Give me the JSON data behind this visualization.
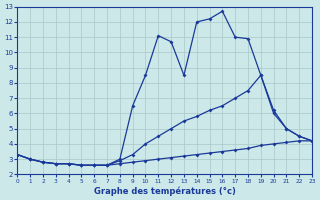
{
  "xlabel": "Graphe des températures (°c)",
  "xlim": [
    0,
    23
  ],
  "ylim": [
    2,
    13
  ],
  "yticks": [
    2,
    3,
    4,
    5,
    6,
    7,
    8,
    9,
    10,
    11,
    12,
    13
  ],
  "xticks": [
    0,
    1,
    2,
    3,
    4,
    5,
    6,
    7,
    8,
    9,
    10,
    11,
    12,
    13,
    14,
    15,
    16,
    17,
    18,
    19,
    20,
    21,
    22,
    23
  ],
  "background_color": "#cce8e8",
  "grid_color": "#aac8c8",
  "line_color": "#1a3a9a",
  "line1_y": [
    3.3,
    3.0,
    2.8,
    2.7,
    2.7,
    2.6,
    2.6,
    2.6,
    3.0,
    6.5,
    8.5,
    11.1,
    10.7,
    8.5,
    12.0,
    12.2,
    12.7,
    11.0,
    10.9,
    8.5,
    6.2,
    5.0,
    4.5,
    4.2
  ],
  "line2_y": [
    3.3,
    3.0,
    2.8,
    2.7,
    2.7,
    2.6,
    2.6,
    2.6,
    2.9,
    3.3,
    4.0,
    4.5,
    5.0,
    5.5,
    5.8,
    6.2,
    6.5,
    7.0,
    7.5,
    8.5,
    6.0,
    5.0,
    4.5,
    4.2
  ],
  "line3_y": [
    3.3,
    3.0,
    2.8,
    2.7,
    2.7,
    2.6,
    2.6,
    2.6,
    2.7,
    2.8,
    2.9,
    3.0,
    3.1,
    3.2,
    3.3,
    3.4,
    3.5,
    3.6,
    3.7,
    3.9,
    4.0,
    4.1,
    4.2,
    4.2
  ]
}
